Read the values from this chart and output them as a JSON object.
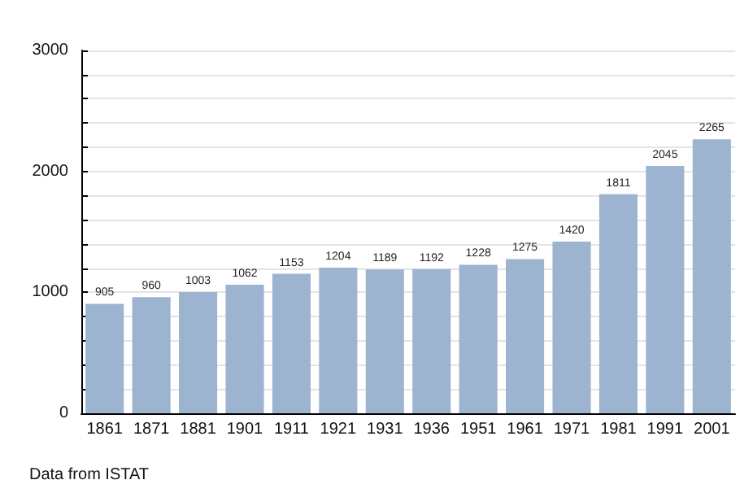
{
  "chart_data": {
    "type": "bar",
    "categories": [
      "1861",
      "1871",
      "1881",
      "1901",
      "1911",
      "1921",
      "1931",
      "1936",
      "1951",
      "1961",
      "1971",
      "1981",
      "1991",
      "2001"
    ],
    "values": [
      905,
      960,
      1003,
      1062,
      1153,
      1204,
      1189,
      1192,
      1228,
      1275,
      1420,
      1811,
      2045,
      2265
    ],
    "color": "#9cb4d0",
    "data_labels": true,
    "ylim": [
      0,
      3000
    ],
    "yticks": [
      0,
      {
        "value": 200,
        "label": null
      },
      {
        "value": 400,
        "label": null
      },
      {
        "value": 600,
        "label": null
      },
      {
        "value": 800,
        "label": null
      },
      1000,
      {
        "value": 1200,
        "label": null
      },
      {
        "value": 1400,
        "label": null
      },
      {
        "value": 1600,
        "label": null
      },
      {
        "value": 1800,
        "label": null
      },
      2000,
      {
        "value": 2200,
        "label": null
      },
      {
        "value": 2400,
        "label": null
      },
      {
        "value": 2600,
        "label": null
      },
      {
        "value": 2800,
        "label": null
      },
      3000
    ],
    "grid": "y",
    "annotations": [
      "Data from ISTAT"
    ]
  }
}
